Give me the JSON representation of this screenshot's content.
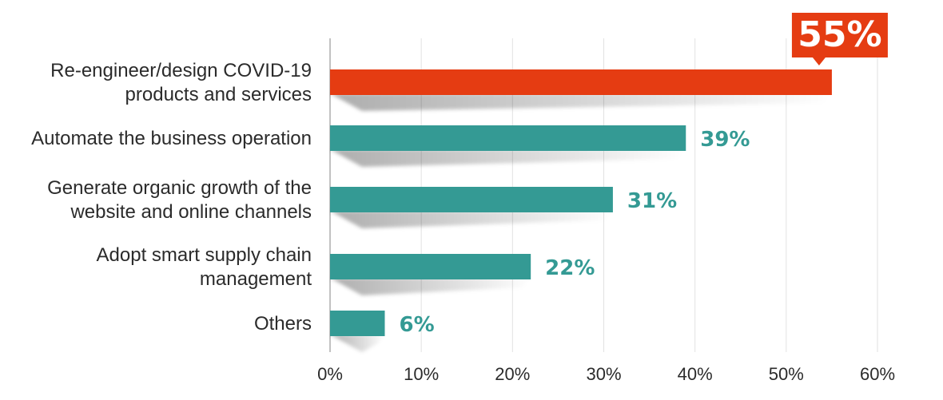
{
  "chart_data": {
    "type": "bar",
    "orientation": "horizontal",
    "categories": [
      [
        "Re-engineer/design COVID-19",
        "products and services"
      ],
      [
        "Automate the business operation"
      ],
      [
        "Generate organic growth of the",
        "website and online channels"
      ],
      [
        "Adopt smart supply chain",
        "management"
      ],
      [
        "Others"
      ]
    ],
    "values": [
      55,
      39,
      31,
      22,
      6
    ],
    "value_labels": [
      "55%",
      "39%",
      "31%",
      "22%",
      "6%"
    ],
    "highlight_index": 0,
    "xlim": [
      0,
      60
    ],
    "xticks": [
      "0%",
      "10%",
      "20%",
      "30%",
      "40%",
      "50%",
      "60%"
    ],
    "grid": "vertical",
    "title": "",
    "xlabel": "",
    "ylabel": "",
    "colors": {
      "highlight": "#e53c12",
      "bar": "#349a94",
      "grid": "#e2e2e2",
      "axis": "#999999"
    }
  }
}
